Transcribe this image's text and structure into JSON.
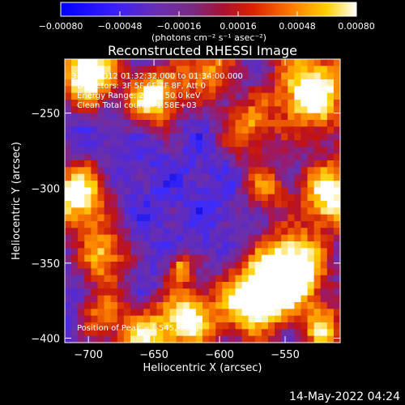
{
  "chart_data": {
    "type": "heatmap",
    "title": "Reconstructed RHESSI Image",
    "xlabel": "Heliocentric X (arcsec)",
    "ylabel": "Heliocentric Y (arcsec)",
    "xlim": [
      -718,
      -508
    ],
    "ylim": [
      -403,
      -214
    ],
    "xticks": [
      -700,
      -650,
      -600,
      -550
    ],
    "yticks": [
      -250,
      -300,
      -350,
      -400
    ],
    "colorbar": {
      "range": [
        -0.0008,
        0.0008
      ],
      "ticks": [
        "-0.00080",
        "-0.00048",
        "-0.00016",
        "0.00016",
        "0.00048",
        "0.00080"
      ],
      "unit_label": "(photons cm⁻² s⁻¹ asec⁻²)"
    },
    "annotations": {
      "time": "3-Sep-2012 01:32:32.000 to 01:34:00.000",
      "detectors": "Detectors: 3F 5F 6F 7F 8F, Att 0",
      "energy": "Energy Range: 25.0 - 50.0 keV",
      "clean": "Clean     Total counts: 1.58E+03",
      "peak": "Position of Peak = [-545,-355]"
    },
    "peak": {
      "x": -545,
      "y": -355
    },
    "blobs": [
      {
        "x": -700,
        "y": -222,
        "amp": 0.9,
        "r": 16
      },
      {
        "x": -650,
        "y": -240,
        "amp": 0.75,
        "r": 14
      },
      {
        "x": -610,
        "y": -220,
        "amp": 0.55,
        "r": 16
      },
      {
        "x": -530,
        "y": -235,
        "amp": 0.8,
        "r": 22
      },
      {
        "x": -580,
        "y": -260,
        "amp": 0.5,
        "r": 14
      },
      {
        "x": -708,
        "y": -305,
        "amp": 0.8,
        "r": 16
      },
      {
        "x": -688,
        "y": -345,
        "amp": 0.6,
        "r": 14
      },
      {
        "x": -515,
        "y": -305,
        "amp": 0.8,
        "r": 16
      },
      {
        "x": -565,
        "y": -300,
        "amp": 0.45,
        "r": 12
      },
      {
        "x": -545,
        "y": -355,
        "amp": 1.0,
        "r": 18
      },
      {
        "x": -575,
        "y": -375,
        "amp": 0.8,
        "r": 18
      },
      {
        "x": -625,
        "y": -388,
        "amp": 0.75,
        "r": 16
      },
      {
        "x": -660,
        "y": -400,
        "amp": 0.6,
        "r": 14
      },
      {
        "x": -520,
        "y": -395,
        "amp": 0.6,
        "r": 12
      },
      {
        "x": -690,
        "y": -385,
        "amp": 0.45,
        "r": 12
      },
      {
        "x": -630,
        "y": -353,
        "amp": 0.55,
        "r": 7
      }
    ],
    "colormap": [
      "#000000",
      "#0000cc",
      "#3b2bff",
      "#5a2ac8",
      "#6d2fa8",
      "#9a1a6a",
      "#c21212",
      "#e64a00",
      "#ff8c00",
      "#ffd000",
      "#ffffff"
    ]
  },
  "footer": {
    "timestamp": "14-May-2022 04:24"
  }
}
